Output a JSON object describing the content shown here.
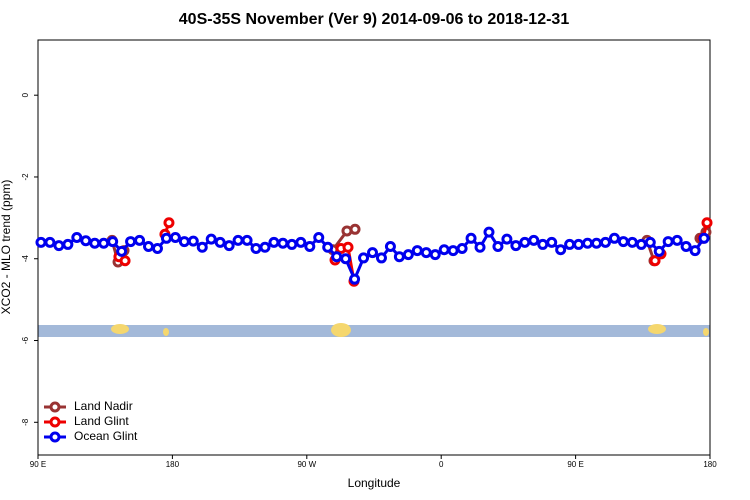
{
  "chart_data": {
    "type": "line",
    "title": "40S-35S November (Ver 9)   2014-09-06 to 2018-12-31",
    "x_label": "Longitude",
    "y_label": "XCO2 - MLO trend (ppm)",
    "xlim": [
      90,
      540
    ],
    "ylim": [
      -8.8,
      1.35
    ],
    "xticks": [
      {
        "value": 90,
        "label": "90 E"
      },
      180,
      {
        "value": 270,
        "label": "90 W"
      },
      {
        "value": 360,
        "label": "0"
      },
      {
        "value": 450,
        "label": "90 E"
      },
      {
        "value": 540,
        "label": "180"
      }
    ],
    "yticks": [
      0,
      -2,
      -4,
      -6,
      -8
    ],
    "legend": "bottom-left",
    "series": [
      {
        "name": "Land Nadir",
        "color": "#993333",
        "x": [
          139.6,
          143.6,
          147.6,
          null,
          287.5,
          296.9,
          302.3,
          null,
          497.8,
          502.5,
          null,
          533.3,
          537.3
        ],
        "values": [
          -3.55,
          -4.08,
          -3.8,
          null,
          -3.78,
          -3.32,
          -3.28,
          null,
          -3.55,
          -4.05,
          null,
          -3.5,
          -3.35
        ]
      },
      {
        "name": "Land Glint",
        "color": "#ee0000",
        "x": [
          144.2,
          148.3,
          null,
          175,
          177.7,
          null,
          288.9,
          292.9,
          297.6,
          301.6,
          null,
          503.2,
          507.2,
          null,
          535.3,
          538
        ],
        "values": [
          -3.95,
          -4.05,
          null,
          -3.4,
          -3.12,
          null,
          -4.03,
          -3.75,
          -3.72,
          -4.55,
          null,
          -4.05,
          -3.88,
          null,
          -3.5,
          -3.12
        ]
      },
      {
        "name": "Ocean Glint",
        "color": "#0000ee",
        "x": [
          92,
          98,
          104,
          110,
          116,
          122,
          128,
          134,
          140,
          146,
          152,
          158,
          164,
          170,
          176,
          182,
          188,
          194,
          200,
          206,
          212,
          218,
          224,
          230,
          236,
          242,
          248,
          254,
          260,
          266,
          272,
          278,
          284,
          290,
          296,
          302,
          308,
          314,
          320,
          326,
          332,
          338,
          344,
          350,
          356,
          362,
          368,
          374,
          380,
          386,
          392,
          398,
          404,
          410,
          416,
          422,
          428,
          434,
          440,
          446,
          452,
          458,
          464,
          470,
          476,
          482,
          488,
          494,
          500,
          506,
          512,
          518,
          524,
          530,
          536
        ],
        "values": [
          -3.6,
          -3.6,
          -3.68,
          -3.65,
          -3.48,
          -3.56,
          -3.62,
          -3.62,
          -3.58,
          -3.82,
          -3.58,
          -3.55,
          -3.7,
          -3.75,
          -3.5,
          -3.48,
          -3.58,
          -3.57,
          -3.72,
          -3.52,
          -3.6,
          -3.68,
          -3.55,
          -3.55,
          -3.75,
          -3.72,
          -3.6,
          -3.62,
          -3.65,
          -3.6,
          -3.7,
          -3.48,
          -3.72,
          -3.95,
          -4.0,
          -4.5,
          -3.98,
          -3.85,
          -3.98,
          -3.7,
          -3.95,
          -3.9,
          -3.8,
          -3.85,
          -3.9,
          -3.78,
          -3.8,
          -3.75,
          -3.5,
          -3.72,
          -3.35,
          -3.7,
          -3.52,
          -3.68,
          -3.6,
          -3.55,
          -3.65,
          -3.6,
          -3.78,
          -3.65,
          -3.65,
          -3.62,
          -3.62,
          -3.6,
          -3.5,
          -3.58,
          -3.6,
          -3.65,
          -3.6,
          -3.82,
          -3.58,
          -3.55,
          -3.7,
          -3.8,
          -3.5
        ]
      }
    ]
  }
}
